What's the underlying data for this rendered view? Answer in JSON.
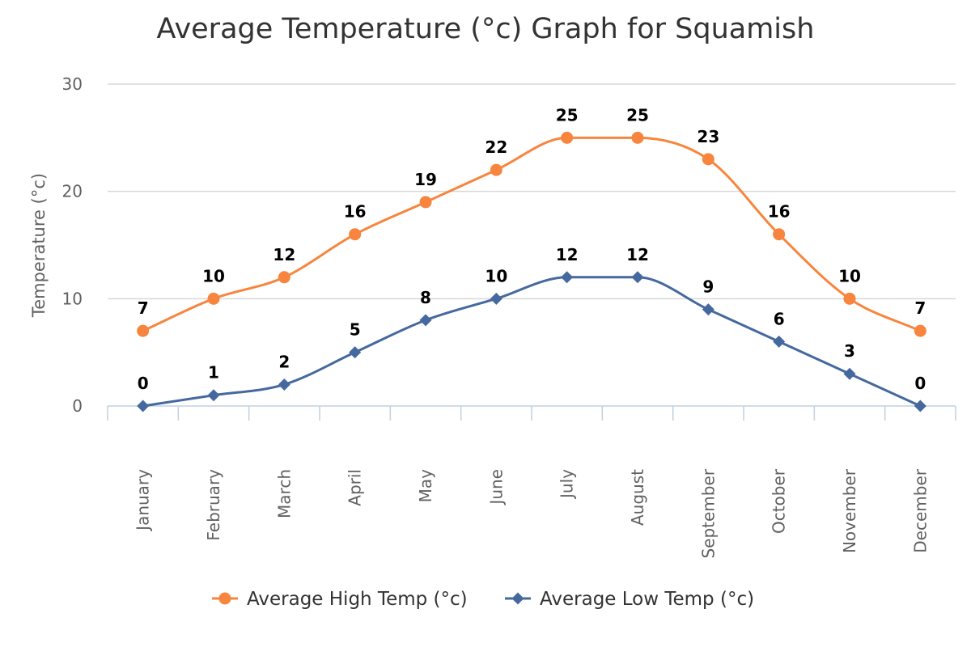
{
  "chart_data": {
    "type": "line",
    "title": "Average Temperature (°c) Graph for Squamish",
    "xlabel": "",
    "ylabel": "Temperature (°c)",
    "ylim": [
      0,
      30
    ],
    "yticks": [
      0,
      10,
      20,
      30
    ],
    "grid": true,
    "legend_position": "bottom-center",
    "categories": [
      "January",
      "February",
      "March",
      "April",
      "May",
      "June",
      "July",
      "August",
      "September",
      "October",
      "November",
      "December"
    ],
    "series": [
      {
        "name": "Average High Temp (°c)",
        "color": "#f7853d",
        "marker": "circle",
        "values": [
          7,
          10,
          12,
          16,
          19,
          22,
          25,
          25,
          23,
          16,
          10,
          7
        ]
      },
      {
        "name": "Average Low Temp (°c)",
        "color": "#45699e",
        "marker": "diamond",
        "values": [
          0,
          1,
          2,
          5,
          8,
          10,
          12,
          12,
          9,
          6,
          3,
          0
        ]
      }
    ]
  },
  "colors": {
    "grid": "#d8d8d8",
    "axis": "#c0d0e0",
    "text": "#606060"
  }
}
